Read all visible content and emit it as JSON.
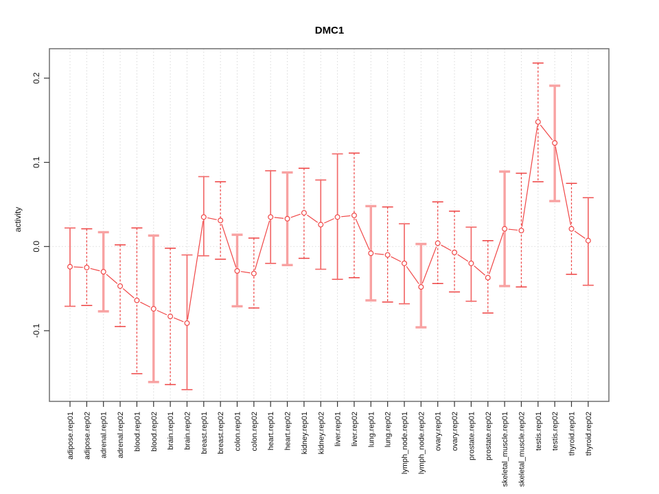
{
  "chart_data": {
    "type": "line",
    "title": "DMC1",
    "xlabel": "",
    "ylabel": "activity",
    "ylim": [
      -0.182,
      0.235
    ],
    "yticks": [
      0.2,
      0.1,
      0.0,
      -0.1
    ],
    "ytick_labels": [
      "0.2",
      "0.1",
      "0.0",
      "-0.1"
    ],
    "grid": "vertical dotted gridline at every category; dotted horizontal reference line at y=0",
    "legend_position": "none",
    "marker": "open-circle",
    "categories": [
      "adipose.rep01",
      "adipose.rep02",
      "adrenal.rep01",
      "adrenal.rep02",
      "blood.rep01",
      "blood.rep02",
      "brain.rep01",
      "brain.rep02",
      "breast.rep01",
      "breast.rep02",
      "colon.rep01",
      "colon.rep02",
      "heart.rep01",
      "heart.rep02",
      "kidney.rep01",
      "kidney.rep02",
      "liver.rep01",
      "liver.rep02",
      "lung.rep01",
      "lung.rep02",
      "lymph_node.rep01",
      "lymph_node.rep02",
      "ovary.rep01",
      "ovary.rep02",
      "prostate.rep01",
      "prostate.rep02",
      "skeletal_muscle.rep01",
      "skeletal_muscle.rep02",
      "testis.rep01",
      "testis.rep02",
      "thyroid.rep01",
      "thyroid.rep02"
    ],
    "series": [
      {
        "name": "activity",
        "values": [
          -0.024,
          -0.025,
          -0.03,
          -0.047,
          -0.064,
          -0.074,
          -0.083,
          -0.091,
          0.035,
          0.031,
          -0.029,
          -0.032,
          0.035,
          0.033,
          0.04,
          0.026,
          0.035,
          0.037,
          -0.008,
          -0.01,
          -0.02,
          -0.048,
          0.004,
          -0.007,
          -0.02,
          -0.037,
          0.021,
          0.019,
          0.148,
          0.123,
          0.021,
          0.007
        ],
        "error_low": [
          -0.071,
          -0.07,
          -0.077,
          -0.095,
          -0.151,
          -0.161,
          -0.164,
          -0.17,
          -0.011,
          -0.015,
          -0.071,
          -0.073,
          -0.02,
          -0.022,
          -0.014,
          -0.027,
          -0.039,
          -0.037,
          -0.064,
          -0.066,
          -0.068,
          -0.096,
          -0.044,
          -0.054,
          -0.065,
          -0.079,
          -0.047,
          -0.048,
          0.077,
          0.054,
          -0.033,
          -0.046
        ],
        "error_high": [
          0.022,
          0.021,
          0.017,
          0.002,
          0.022,
          0.013,
          -0.002,
          -0.01,
          0.083,
          0.077,
          0.014,
          0.01,
          0.09,
          0.088,
          0.093,
          0.079,
          0.11,
          0.111,
          0.048,
          0.047,
          0.027,
          0.003,
          0.053,
          0.042,
          0.023,
          0.007,
          0.089,
          0.087,
          0.218,
          0.191,
          0.075,
          0.058
        ],
        "error_styles": [
          "solid",
          "dashed",
          "thick",
          "dashed",
          "dashed",
          "thick",
          "dashed",
          "solid",
          "solid",
          "dashed",
          "thick",
          "dashed",
          "solid",
          "thick",
          "dashed",
          "solid",
          "solid",
          "dashed",
          "thick",
          "dashed",
          "solid",
          "thick",
          "dashed",
          "dashed",
          "solid",
          "dashed",
          "thick",
          "dashed",
          "dashed",
          "thick",
          "dashed",
          "solid"
        ]
      }
    ],
    "colors": {
      "line": "#f04545",
      "marker_stroke": "#f04545",
      "marker_fill": "#ffffff",
      "errorbar_solid": "#f26a6a",
      "errorbar_dashed": "#ee4040",
      "errorbar_thick": "#f8a2a2",
      "gridline": "#d8d8d8",
      "zero_line": "#dcdcdc",
      "axis_box": "#6e6e6e",
      "tick": "#333333",
      "text": "#111111"
    }
  }
}
